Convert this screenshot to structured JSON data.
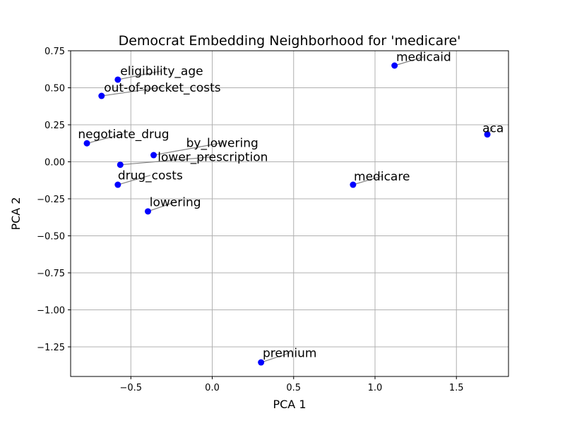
{
  "chart_data": {
    "type": "scatter",
    "title": "Democrat Embedding Neighborhood for 'medicare'",
    "xlabel": "PCA 1",
    "ylabel": "PCA 2",
    "xlim": [
      -0.87,
      1.82
    ],
    "ylim": [
      -1.45,
      0.75
    ],
    "xticks": [
      -0.5,
      0.0,
      0.5,
      1.0,
      1.5
    ],
    "xtick_labels": [
      "−0.5",
      "0.0",
      "0.5",
      "1.0",
      "1.5"
    ],
    "yticks": [
      0.75,
      0.5,
      0.25,
      0.0,
      -0.25,
      -0.5,
      -0.75,
      -1.0,
      -1.25
    ],
    "ytick_labels": [
      "0.75",
      "0.50",
      "0.25",
      "0.00",
      "−0.25",
      "−0.50",
      "−0.75",
      "−1.00",
      "−1.25"
    ],
    "grid": true,
    "point_color": "#0000ff",
    "leader_color": "#808080",
    "points": [
      {
        "label": "medicaid",
        "x": 1.12,
        "y": 0.65,
        "lx": 1.13,
        "ly": 0.68
      },
      {
        "label": "eligibility_age",
        "x": -0.58,
        "y": 0.555,
        "lx": -0.565,
        "ly": 0.585
      },
      {
        "label": "out-of-pocket_costs",
        "x": -0.68,
        "y": 0.445,
        "lx": -0.665,
        "ly": 0.475
      },
      {
        "label": "aca",
        "x": 1.69,
        "y": 0.185,
        "lx": 1.66,
        "ly": 0.2
      },
      {
        "label": "negotiate_drug",
        "x": -0.77,
        "y": 0.125,
        "lx": -0.825,
        "ly": 0.16
      },
      {
        "label": "by_lowering",
        "x": -0.36,
        "y": 0.045,
        "lx": -0.16,
        "ly": 0.1
      },
      {
        "label": "lower_prescription",
        "x": -0.565,
        "y": -0.02,
        "lx": -0.335,
        "ly": 0.005
      },
      {
        "label": "drug_costs",
        "x": -0.58,
        "y": -0.155,
        "lx": -0.58,
        "ly": -0.12
      },
      {
        "label": "medicare",
        "x": 0.865,
        "y": -0.155,
        "lx": 0.87,
        "ly": -0.125
      },
      {
        "label": "lowering",
        "x": -0.395,
        "y": -0.335,
        "lx": -0.385,
        "ly": -0.3
      },
      {
        "label": "premium",
        "x": 0.3,
        "y": -1.355,
        "lx": 0.31,
        "ly": -1.32
      }
    ]
  }
}
